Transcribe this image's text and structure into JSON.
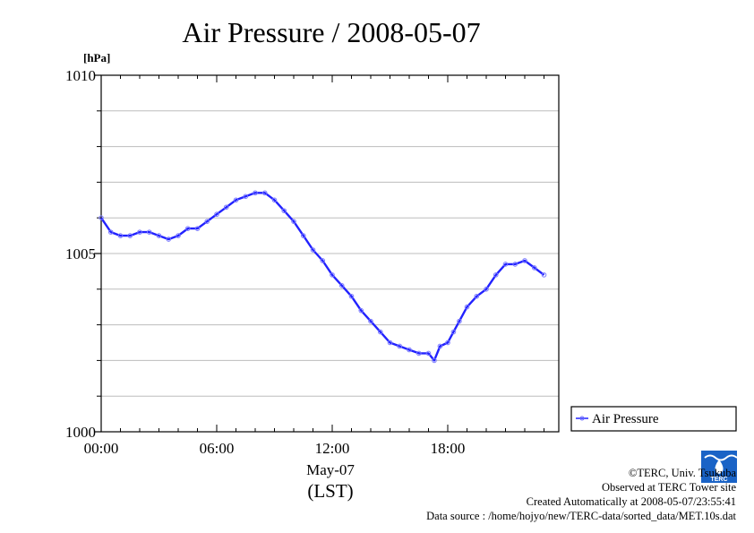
{
  "chart_data": {
    "type": "line",
    "title": "Air Pressure / 2008-05-07",
    "ylabel_unit": "[hPa]",
    "xlabel_date": "May-07",
    "xlabel_tz": "(LST)",
    "ylim": [
      1000,
      1010
    ],
    "y_ticks": [
      1000,
      1005,
      1010
    ],
    "y_tick_labels": [
      "1000",
      "1005",
      "1010"
    ],
    "y_grid_step": 1,
    "xlim_hours": [
      0,
      23
    ],
    "x_ticks_hours": [
      0,
      6,
      12,
      18
    ],
    "x_tick_labels": [
      "00:00",
      "06:00",
      "12:00",
      "18:00"
    ],
    "grid": true,
    "legend_position": "right",
    "series": [
      {
        "name": "Air Pressure",
        "color": "#2222ff",
        "x_hours": [
          0,
          0.5,
          1,
          1.5,
          2,
          2.5,
          3,
          3.5,
          4,
          4.5,
          5,
          5.5,
          6,
          6.5,
          7,
          7.5,
          8,
          8.5,
          9,
          9.5,
          10,
          10.5,
          11,
          11.5,
          12,
          12.5,
          13,
          13.5,
          14,
          14.5,
          15,
          15.5,
          16,
          16.5,
          17,
          17.3,
          17.6,
          18,
          18.3,
          18.6,
          19,
          19.5,
          20,
          20.5,
          21,
          21.5,
          22,
          22.5,
          23
        ],
        "values": [
          1006.0,
          1005.6,
          1005.5,
          1005.5,
          1005.6,
          1005.6,
          1005.5,
          1005.4,
          1005.5,
          1005.7,
          1005.7,
          1005.9,
          1006.1,
          1006.3,
          1006.5,
          1006.6,
          1006.7,
          1006.7,
          1006.5,
          1006.2,
          1005.9,
          1005.5,
          1005.1,
          1004.8,
          1004.4,
          1004.1,
          1003.8,
          1003.4,
          1003.1,
          1002.8,
          1002.5,
          1002.4,
          1002.3,
          1002.2,
          1002.2,
          1002.0,
          1002.4,
          1002.5,
          1002.8,
          1003.1,
          1003.5,
          1003.8,
          1004.0,
          1004.4,
          1004.7,
          1004.7,
          1004.8,
          1004.6,
          1004.4
        ]
      }
    ]
  },
  "credits": {
    "line1": "©TERC, Univ. Tsukuba",
    "line2": "Observed at TERC Tower site",
    "line3": "Created Automatically at 2008-05-07/23:55:41",
    "line4": "Data source : /home/hojyo/new/TERC-data/sorted_data/MET.10s.dat"
  },
  "logo": {
    "text": "TERC",
    "color": "#1a63c6"
  }
}
